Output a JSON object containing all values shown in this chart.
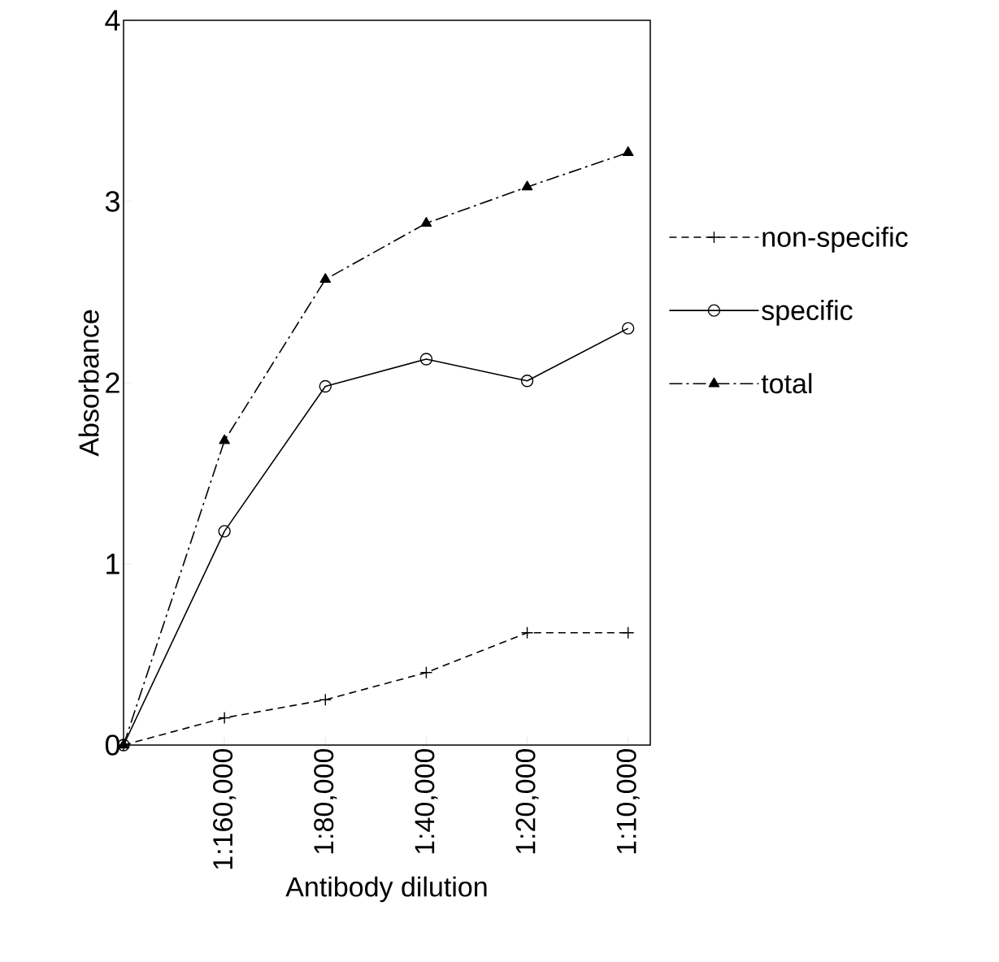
{
  "chart_data": {
    "type": "line",
    "xlabel": "Antibody dilution",
    "ylabel": "Absorbance",
    "categories": [
      null,
      "1:160,000",
      "1:80,000",
      "1:40,000",
      "1:20,000",
      "1:10,000"
    ],
    "ylim": [
      0,
      4
    ],
    "yticks": [
      0,
      1,
      2,
      3,
      4
    ],
    "grid": false,
    "legend": "right",
    "series": [
      {
        "name": "non-specific",
        "color": "#000000",
        "marker": "cross",
        "line_style": "dashed",
        "values": [
          0,
          0.15,
          0.25,
          0.4,
          0.62,
          0.62
        ]
      },
      {
        "name": "specific",
        "color": "#000000",
        "marker": "circle",
        "line_style": "solid",
        "values": [
          0,
          1.18,
          1.98,
          2.13,
          2.01,
          2.3
        ]
      },
      {
        "name": "total",
        "color": "#000000",
        "marker": "triangle",
        "line_style": "dashdot",
        "values": [
          0,
          1.68,
          2.57,
          2.88,
          3.08,
          3.27
        ]
      }
    ]
  }
}
